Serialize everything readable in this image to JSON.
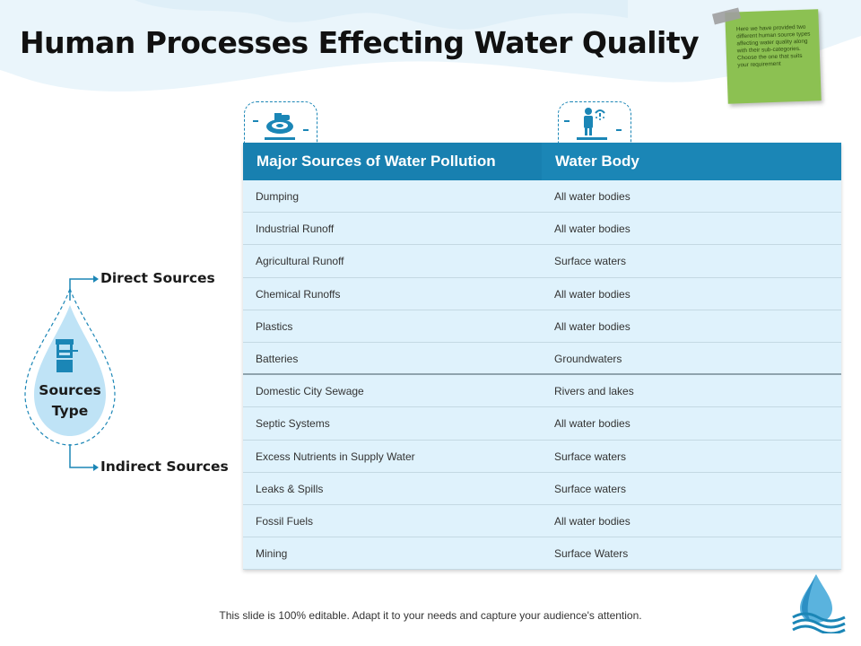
{
  "slide": {
    "title": "Human Processes Effecting Water Quality",
    "note": "Here we have provided two different human source types affecting water quality along with their sub-categories. Choose the one that suits your requirement",
    "footer": "This slide is 100% editable. Adapt it to your needs and capture your audience's attention."
  },
  "diagram": {
    "center_label_line1": "Sources",
    "center_label_line2": "Type",
    "direct_label": "Direct Sources",
    "indirect_label": "Indirect Sources"
  },
  "table": {
    "headers": [
      "Major Sources of Water Pollution",
      "Water Body"
    ],
    "rows": [
      [
        "Dumping",
        "All water bodies"
      ],
      [
        "Industrial Runoff",
        "All water bodies"
      ],
      [
        "Agricultural Runoff",
        "Surface waters"
      ],
      [
        "Chemical Runoffs",
        "All water bodies"
      ],
      [
        "Plastics",
        "All water bodies"
      ],
      [
        "Batteries",
        "Groundwaters"
      ],
      [
        "Domestic City Sewage",
        "Rivers and lakes"
      ],
      [
        "Septic Systems",
        "All water bodies"
      ],
      [
        "Excess Nutrients in Supply Water",
        "Surface waters"
      ],
      [
        "Leaks & Spills",
        "Surface waters"
      ],
      [
        "Fossil Fuels",
        "All water bodies"
      ],
      [
        "Mining",
        "Surface Waters"
      ]
    ]
  },
  "colors": {
    "accent": "#1b86b6",
    "row_bg": "#dff2fc",
    "drop_fill": "#bfe3f6",
    "note_bg": "#8cc152"
  },
  "icons": [
    "dumping-icon",
    "person-shower-icon",
    "water-well-icon",
    "water-drop-logo-icon"
  ]
}
